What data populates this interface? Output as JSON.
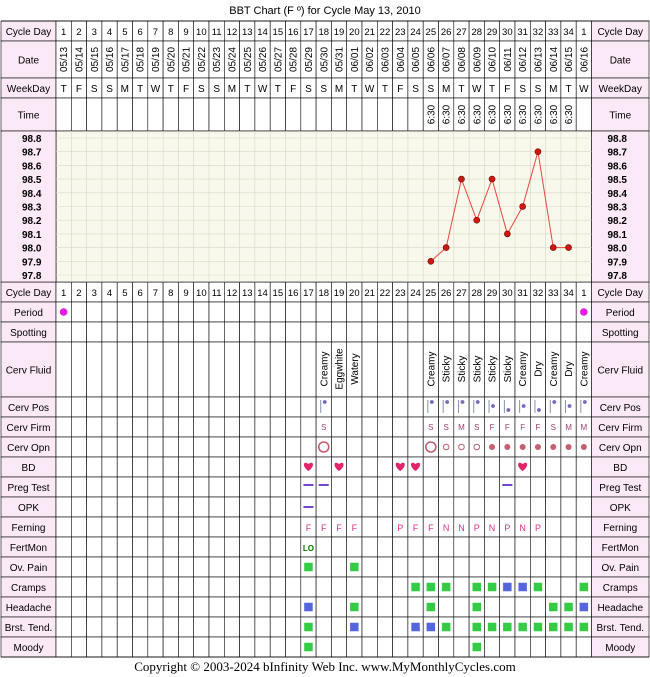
{
  "title": "BBT Chart (F º) for Cycle May 13, 2010",
  "copyright": "Copyright © 2003-2024 bInfinity Web Inc.     www.MyMonthlyCycles.com",
  "colors": {
    "header_bg": "#fbe9f7",
    "grid_line": "#000000",
    "plot_bg": "#f8f8ec",
    "plot_grid": "#d6d6c8",
    "temp_line": "#e8463c",
    "temp_dot": "#cc1a12",
    "period_dot": "#e51ee5",
    "text_red": "#cc0000",
    "heart": "#e2256b",
    "green_box": "#33cc44",
    "blue_box": "#5566dd",
    "purple_line": "#6633cc",
    "ferning_text": "#e0308a",
    "lo_text": "#007700",
    "opn_circle": "#c06070"
  },
  "row_labels": {
    "cycle_day": "Cycle Day",
    "date": "Date",
    "weekday": "WeekDay",
    "time": "Time",
    "period": "Period",
    "spotting": "Spotting",
    "cerv_fluid": "Cerv Fluid",
    "cerv_pos": "Cerv Pos",
    "cerv_firm": "Cerv Firm",
    "cerv_opn": "Cerv Opn",
    "bd": "BD",
    "preg_test": "Preg Test",
    "opk": "OPK",
    "ferning": "Ferning",
    "fertmon": "FertMon",
    "ov_pain": "Ov. Pain",
    "cramps": "Cramps",
    "headache": "Headache",
    "brst_tend": "Brst. Tend.",
    "moody": "Moody"
  },
  "cycle_days": [
    "1",
    "2",
    "3",
    "4",
    "5",
    "6",
    "7",
    "8",
    "9",
    "10",
    "11",
    "12",
    "13",
    "14",
    "15",
    "16",
    "17",
    "18",
    "19",
    "20",
    "21",
    "22",
    "23",
    "24",
    "25",
    "26",
    "27",
    "28",
    "29",
    "30",
    "31",
    "32",
    "33",
    "34",
    "1"
  ],
  "dates": [
    "05/13",
    "05/14",
    "05/15",
    "05/16",
    "05/17",
    "05/18",
    "05/19",
    "05/20",
    "05/21",
    "05/22",
    "05/23",
    "05/24",
    "05/25",
    "05/26",
    "05/27",
    "05/28",
    "05/29",
    "05/30",
    "05/31",
    "06/01",
    "06/02",
    "06/03",
    "06/04",
    "06/05",
    "06/06",
    "06/07",
    "06/08",
    "06/09",
    "06/10",
    "06/11",
    "06/12",
    "06/13",
    "06/14",
    "06/15",
    "06/16"
  ],
  "weekdays": [
    "T",
    "F",
    "S",
    "S",
    "M",
    "T",
    "W",
    "T",
    "F",
    "S",
    "S",
    "M",
    "T",
    "W",
    "T",
    "F",
    "S",
    "S",
    "M",
    "T",
    "W",
    "T",
    "F",
    "S",
    "S",
    "M",
    "T",
    "W",
    "T",
    "F",
    "S",
    "S",
    "M",
    "T",
    "W"
  ],
  "times": [
    "",
    "",
    "",
    "",
    "",
    "",
    "",
    "",
    "",
    "",
    "",
    "",
    "",
    "",
    "",
    "",
    "",
    "",
    "",
    "",
    "",
    "",
    "",
    "",
    "6:30",
    "6:30",
    "6:30",
    "6:30",
    "6:30",
    "6:30",
    "6:30",
    "6:30",
    "6:30",
    "6:30",
    ""
  ],
  "chart_data": {
    "type": "line",
    "title": "BBT Chart (F º) for Cycle May 13, 2010",
    "ylim": [
      97.8,
      98.8
    ],
    "y_ticks": [
      "98.8",
      "98.7",
      "98.6",
      "98.5",
      "98.4",
      "98.3",
      "98.2",
      "98.1",
      "98.0",
      "97.9",
      "97.8"
    ],
    "x": [
      "06/06",
      "06/07",
      "06/08",
      "06/09",
      "06/10",
      "06/11",
      "06/12",
      "06/13",
      "06/14",
      "06/15"
    ],
    "cycle_day": [
      25,
      26,
      27,
      28,
      29,
      30,
      31,
      32,
      33,
      34
    ],
    "values": [
      97.9,
      98.0,
      98.5,
      98.2,
      98.5,
      98.1,
      98.3,
      98.7,
      98.0,
      98.0
    ],
    "grid": true
  },
  "period": {
    "cells": [
      1,
      35
    ]
  },
  "cerv_fluid": [
    {
      "day": 18,
      "text": "Creamy"
    },
    {
      "day": 19,
      "text": "Eggwhite"
    },
    {
      "day": 20,
      "text": "Watery"
    },
    {
      "day": 25,
      "text": "Creamy"
    },
    {
      "day": 26,
      "text": "Sticky"
    },
    {
      "day": 27,
      "text": "Sticky"
    },
    {
      "day": 28,
      "text": "Sticky"
    },
    {
      "day": 29,
      "text": "Sticky"
    },
    {
      "day": 30,
      "text": "Sticky"
    },
    {
      "day": 31,
      "text": "Creamy"
    },
    {
      "day": 32,
      "text": "Dry"
    },
    {
      "day": 33,
      "text": "Creamy"
    },
    {
      "day": 34,
      "text": "Dry"
    },
    {
      "day": 35,
      "text": "Creamy"
    }
  ],
  "cerv_pos": [
    {
      "day": 18,
      "level": "high"
    },
    {
      "day": 25,
      "level": "high"
    },
    {
      "day": 26,
      "level": "high"
    },
    {
      "day": 27,
      "level": "high"
    },
    {
      "day": 28,
      "level": "high"
    },
    {
      "day": 29,
      "level": "mid"
    },
    {
      "day": 30,
      "level": "low"
    },
    {
      "day": 31,
      "level": "mid"
    },
    {
      "day": 32,
      "level": "low"
    },
    {
      "day": 33,
      "level": "high"
    },
    {
      "day": 34,
      "level": "mid"
    },
    {
      "day": 35,
      "level": "high"
    }
  ],
  "cerv_firm": [
    {
      "day": 18,
      "text": "S"
    },
    {
      "day": 25,
      "text": "S"
    },
    {
      "day": 26,
      "text": "S"
    },
    {
      "day": 27,
      "text": "M"
    },
    {
      "day": 28,
      "text": "S"
    },
    {
      "day": 29,
      "text": "F"
    },
    {
      "day": 30,
      "text": "F"
    },
    {
      "day": 31,
      "text": "F"
    },
    {
      "day": 32,
      "text": "F"
    },
    {
      "day": 33,
      "text": "S"
    },
    {
      "day": 34,
      "text": "M"
    },
    {
      "day": 35,
      "text": "M"
    }
  ],
  "cerv_opn": [
    {
      "day": 18,
      "size": "large"
    },
    {
      "day": 25,
      "size": "large"
    },
    {
      "day": 26,
      "size": "small"
    },
    {
      "day": 27,
      "size": "small"
    },
    {
      "day": 28,
      "size": "small"
    },
    {
      "day": 29,
      "size": "dot"
    },
    {
      "day": 30,
      "size": "dot"
    },
    {
      "day": 31,
      "size": "dot"
    },
    {
      "day": 32,
      "size": "dot"
    },
    {
      "day": 33,
      "size": "dot"
    },
    {
      "day": 34,
      "size": "dot"
    },
    {
      "day": 35,
      "size": "dot"
    }
  ],
  "bd": [
    17,
    19,
    23,
    24,
    31
  ],
  "preg_test": [
    17,
    18,
    30
  ],
  "opk": [
    17
  ],
  "ferning": [
    {
      "day": 17,
      "text": "F"
    },
    {
      "day": 18,
      "text": "F"
    },
    {
      "day": 19,
      "text": "F"
    },
    {
      "day": 20,
      "text": "F"
    },
    {
      "day": 23,
      "text": "P"
    },
    {
      "day": 24,
      "text": "F"
    },
    {
      "day": 25,
      "text": "F"
    },
    {
      "day": 26,
      "text": "N"
    },
    {
      "day": 27,
      "text": "N"
    },
    {
      "day": 28,
      "text": "P"
    },
    {
      "day": 29,
      "text": "N"
    },
    {
      "day": 30,
      "text": "P"
    },
    {
      "day": 31,
      "text": "N"
    },
    {
      "day": 32,
      "text": "P"
    }
  ],
  "fertmon": [
    {
      "day": 17,
      "text": "LO"
    }
  ],
  "ov_pain": [
    {
      "day": 17,
      "color": "green"
    },
    {
      "day": 20,
      "color": "green"
    }
  ],
  "cramps": [
    {
      "day": 24,
      "color": "green"
    },
    {
      "day": 25,
      "color": "green"
    },
    {
      "day": 26,
      "color": "green"
    },
    {
      "day": 28,
      "color": "green"
    },
    {
      "day": 29,
      "color": "green"
    },
    {
      "day": 30,
      "color": "blue"
    },
    {
      "day": 31,
      "color": "blue"
    },
    {
      "day": 32,
      "color": "green"
    },
    {
      "day": 35,
      "color": "green"
    }
  ],
  "headache": [
    {
      "day": 17,
      "color": "blue"
    },
    {
      "day": 20,
      "color": "green"
    },
    {
      "day": 25,
      "color": "green"
    },
    {
      "day": 28,
      "color": "green"
    },
    {
      "day": 33,
      "color": "green"
    },
    {
      "day": 34,
      "color": "green"
    },
    {
      "day": 35,
      "color": "blue"
    }
  ],
  "brst_tend": [
    {
      "day": 17,
      "color": "green"
    },
    {
      "day": 20,
      "color": "blue"
    },
    {
      "day": 24,
      "color": "blue"
    },
    {
      "day": 25,
      "color": "blue"
    },
    {
      "day": 26,
      "color": "green"
    },
    {
      "day": 28,
      "color": "green"
    },
    {
      "day": 29,
      "color": "green"
    },
    {
      "day": 30,
      "color": "green"
    },
    {
      "day": 31,
      "color": "green"
    },
    {
      "day": 32,
      "color": "green"
    },
    {
      "day": 33,
      "color": "green"
    },
    {
      "day": 34,
      "color": "green"
    },
    {
      "day": 35,
      "color": "green"
    }
  ],
  "moody": [
    {
      "day": 17,
      "color": "green"
    },
    {
      "day": 28,
      "color": "green"
    }
  ]
}
